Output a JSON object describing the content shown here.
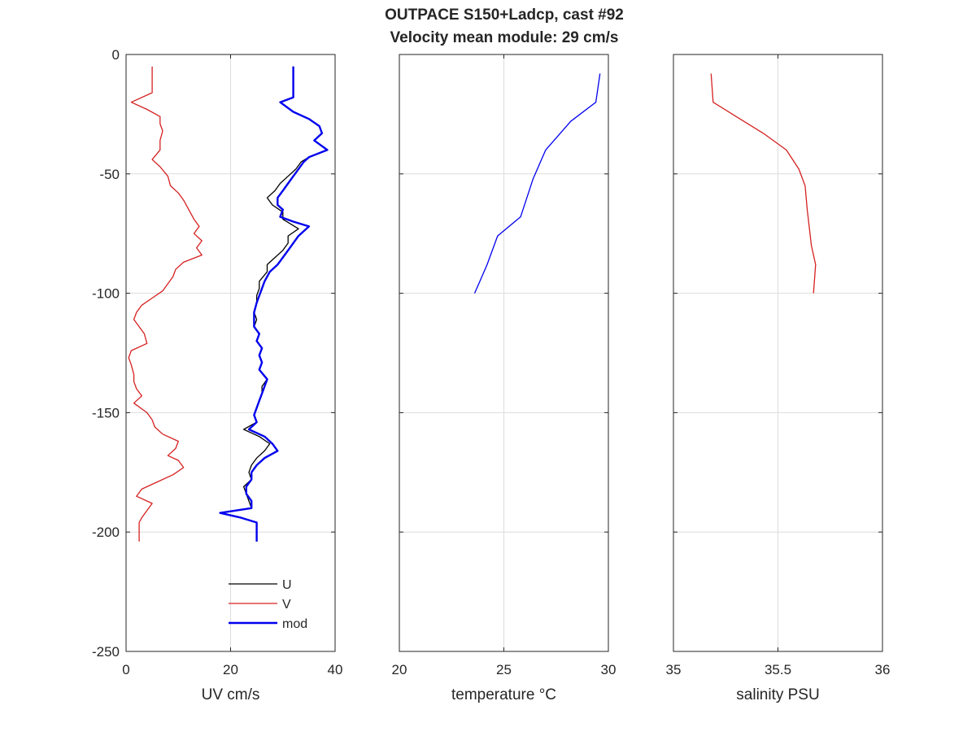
{
  "figure": {
    "title_line1": "OUTPACE S150+Ladcp, cast #92",
    "title_line2": "Velocity mean module:  29 cm/s"
  },
  "chart_data": [
    {
      "type": "line",
      "xlabel": "UV cm/s",
      "ylabel": "",
      "xlim": [
        0,
        40
      ],
      "ylim": [
        -250,
        0
      ],
      "xticks": [
        0,
        20,
        40
      ],
      "yticks": [
        0,
        -50,
        -100,
        -150,
        -200,
        -250
      ],
      "grid": true,
      "legend": {
        "placement": "bottom-right",
        "entries": [
          "U",
          "V",
          "mod"
        ]
      },
      "series": [
        {
          "name": "U",
          "color": "#000000",
          "points": [
            [
              32,
              -5
            ],
            [
              32,
              -12
            ],
            [
              32,
              -18
            ],
            [
              29.5,
              -20
            ],
            [
              32,
              -24
            ],
            [
              35,
              -27
            ],
            [
              37,
              -30
            ],
            [
              37.5,
              -33
            ],
            [
              36,
              -36
            ],
            [
              38.5,
              -40
            ],
            [
              35,
              -43
            ],
            [
              33.5,
              -45
            ],
            [
              32.5,
              -48
            ],
            [
              31,
              -51
            ],
            [
              29.5,
              -54
            ],
            [
              28.5,
              -57
            ],
            [
              27,
              -60
            ],
            [
              28,
              -63
            ],
            [
              30,
              -66
            ],
            [
              30,
              -69
            ],
            [
              33,
              -73
            ],
            [
              31,
              -76
            ],
            [
              31,
              -79
            ],
            [
              30,
              -82
            ],
            [
              28.5,
              -85
            ],
            [
              27,
              -88
            ],
            [
              27,
              -91
            ],
            [
              25.5,
              -95
            ],
            [
              25.5,
              -98
            ],
            [
              25,
              -101
            ],
            [
              25,
              -104
            ],
            [
              24.5,
              -108
            ],
            [
              25,
              -111
            ],
            [
              24.5,
              -114
            ],
            [
              25.5,
              -117
            ],
            [
              25,
              -120
            ],
            [
              26,
              -123
            ],
            [
              25.5,
              -126
            ],
            [
              26,
              -129
            ],
            [
              25.5,
              -132
            ],
            [
              27,
              -136
            ],
            [
              26,
              -139
            ],
            [
              26,
              -142
            ],
            [
              25.5,
              -145
            ],
            [
              25,
              -148
            ],
            [
              24.5,
              -151
            ],
            [
              25,
              -154
            ],
            [
              22.5,
              -157
            ],
            [
              25.5,
              -160
            ],
            [
              27.5,
              -163
            ],
            [
              26.5,
              -166
            ],
            [
              25,
              -169
            ],
            [
              24,
              -172
            ],
            [
              23.5,
              -175
            ],
            [
              24,
              -178
            ],
            [
              22.5,
              -181
            ],
            [
              23,
              -184
            ],
            [
              23.5,
              -187
            ],
            [
              24,
              -190
            ],
            [
              18,
              -192
            ],
            [
              22,
              -194
            ],
            [
              25,
              -196
            ],
            [
              25,
              -200
            ],
            [
              25,
              -204
            ]
          ]
        },
        {
          "name": "V",
          "color": "#d62020",
          "points": [
            [
              5,
              -5
            ],
            [
              5,
              -10
            ],
            [
              5,
              -16
            ],
            [
              1,
              -20
            ],
            [
              4,
              -23
            ],
            [
              6.5,
              -26
            ],
            [
              6.5,
              -29
            ],
            [
              7,
              -32
            ],
            [
              6.5,
              -36
            ],
            [
              6.5,
              -40
            ],
            [
              5,
              -44
            ],
            [
              6.5,
              -47
            ],
            [
              8,
              -51
            ],
            [
              8.5,
              -55
            ],
            [
              10,
              -58
            ],
            [
              11,
              -61
            ],
            [
              12,
              -65
            ],
            [
              13,
              -69
            ],
            [
              14,
              -72
            ],
            [
              13,
              -75
            ],
            [
              14.5,
              -78
            ],
            [
              13.5,
              -81
            ],
            [
              14.5,
              -84
            ],
            [
              11,
              -87
            ],
            [
              9.5,
              -90
            ],
            [
              9,
              -93
            ],
            [
              8,
              -96
            ],
            [
              7,
              -99
            ],
            [
              5,
              -102
            ],
            [
              3,
              -105
            ],
            [
              2,
              -108
            ],
            [
              1.5,
              -111
            ],
            [
              2.5,
              -114
            ],
            [
              3.5,
              -117
            ],
            [
              4,
              -121
            ],
            [
              1,
              -124
            ],
            [
              0.5,
              -127
            ],
            [
              1,
              -130
            ],
            [
              1.5,
              -134
            ],
            [
              1.5,
              -137
            ],
            [
              2,
              -140
            ],
            [
              3,
              -143
            ],
            [
              1.5,
              -146
            ],
            [
              4,
              -150
            ],
            [
              5,
              -153
            ],
            [
              5.5,
              -156
            ],
            [
              7,
              -159
            ],
            [
              10,
              -162
            ],
            [
              9.5,
              -165
            ],
            [
              8,
              -168
            ],
            [
              10,
              -170
            ],
            [
              11,
              -173
            ],
            [
              9,
              -176
            ],
            [
              6,
              -179
            ],
            [
              3,
              -182
            ],
            [
              2,
              -185
            ],
            [
              5,
              -188
            ],
            [
              4,
              -191
            ],
            [
              3,
              -194
            ],
            [
              2.5,
              -196
            ],
            [
              2.5,
              -200
            ],
            [
              2.5,
              -204
            ]
          ]
        },
        {
          "name": "mod",
          "color": "#0000ee",
          "points": [
            [
              32,
              -5
            ],
            [
              32,
              -12
            ],
            [
              32,
              -18
            ],
            [
              29.5,
              -20
            ],
            [
              32,
              -24
            ],
            [
              35,
              -27
            ],
            [
              37,
              -30
            ],
            [
              37.5,
              -33
            ],
            [
              36,
              -36
            ],
            [
              38.5,
              -40
            ],
            [
              35,
              -43
            ],
            [
              34,
              -45
            ],
            [
              33,
              -48
            ],
            [
              32,
              -51
            ],
            [
              31,
              -54
            ],
            [
              30,
              -57
            ],
            [
              29,
              -60
            ],
            [
              29,
              -63
            ],
            [
              30,
              -65
            ],
            [
              29.5,
              -68
            ],
            [
              32,
              -70
            ],
            [
              35,
              -72
            ],
            [
              33,
              -76
            ],
            [
              32,
              -79
            ],
            [
              31,
              -82
            ],
            [
              30,
              -85
            ],
            [
              29,
              -88
            ],
            [
              27.5,
              -91
            ],
            [
              26.5,
              -95
            ],
            [
              26,
              -98
            ],
            [
              25.5,
              -101
            ],
            [
              25,
              -104
            ],
            [
              24.5,
              -108
            ],
            [
              24.5,
              -111
            ],
            [
              24.5,
              -114
            ],
            [
              25.5,
              -117
            ],
            [
              25,
              -120
            ],
            [
              26,
              -123
            ],
            [
              25.5,
              -126
            ],
            [
              26,
              -129
            ],
            [
              25.5,
              -132
            ],
            [
              27,
              -136
            ],
            [
              26.5,
              -139
            ],
            [
              26,
              -142
            ],
            [
              25.5,
              -145
            ],
            [
              25,
              -148
            ],
            [
              24.5,
              -151
            ],
            [
              25,
              -154
            ],
            [
              23.5,
              -157
            ],
            [
              26.5,
              -160
            ],
            [
              28,
              -163
            ],
            [
              29,
              -166
            ],
            [
              26.5,
              -169
            ],
            [
              25,
              -172
            ],
            [
              24,
              -175
            ],
            [
              24,
              -178
            ],
            [
              23,
              -181
            ],
            [
              23,
              -184
            ],
            [
              24,
              -187
            ],
            [
              24,
              -190
            ],
            [
              18,
              -192
            ],
            [
              22,
              -194
            ],
            [
              25,
              -196
            ],
            [
              25,
              -200
            ],
            [
              25,
              -204
            ]
          ]
        }
      ]
    },
    {
      "type": "line",
      "xlabel": "temperature °C",
      "xlim": [
        20,
        30
      ],
      "ylim": [
        -250,
        0
      ],
      "xticks": [
        20,
        25,
        30
      ],
      "yticks": [
        0,
        -50,
        -100,
        -150,
        -200,
        -250
      ],
      "grid": true,
      "series": [
        {
          "color": "#0000ee",
          "points": [
            [
              29.6,
              -8
            ],
            [
              29.4,
              -20
            ],
            [
              28.2,
              -28
            ],
            [
              27,
              -40
            ],
            [
              26.4,
              -52
            ],
            [
              25.8,
              -68
            ],
            [
              24.7,
              -76
            ],
            [
              24.2,
              -88
            ],
            [
              23.8,
              -96
            ],
            [
              23.6,
              -100
            ]
          ]
        }
      ]
    },
    {
      "type": "line",
      "xlabel": "salinity PSU",
      "xlim": [
        35,
        36
      ],
      "ylim": [
        -250,
        0
      ],
      "xticks": [
        "35",
        "35.5",
        "36"
      ],
      "yticks": [
        0,
        -50,
        -100,
        -150,
        -200,
        -250
      ],
      "grid": true,
      "series": [
        {
          "color": "#d62020",
          "points": [
            [
              35.18,
              -8
            ],
            [
              35.19,
              -20
            ],
            [
              35.3,
              -26
            ],
            [
              35.43,
              -33
            ],
            [
              35.54,
              -40
            ],
            [
              35.6,
              -48
            ],
            [
              35.63,
              -55
            ],
            [
              35.64,
              -65
            ],
            [
              35.66,
              -80
            ],
            [
              35.68,
              -88
            ],
            [
              35.67,
              -100
            ]
          ]
        }
      ]
    }
  ]
}
